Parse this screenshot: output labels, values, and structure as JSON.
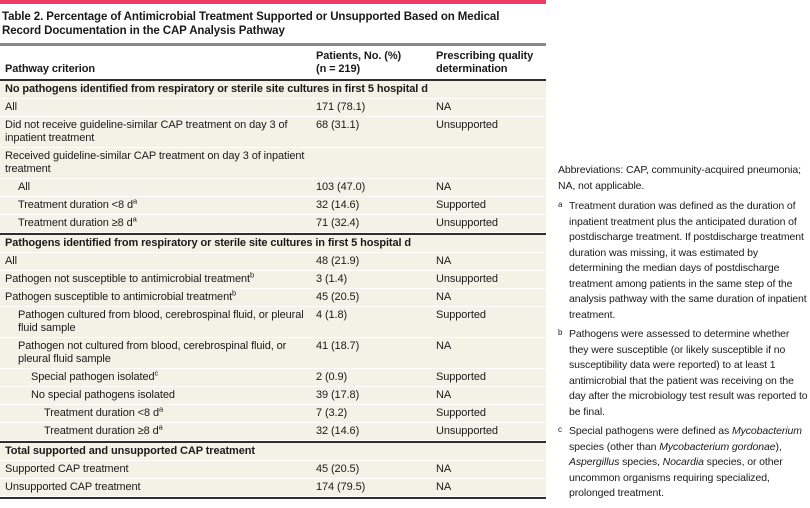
{
  "colors": {
    "accent": "#ee3b63",
    "cream": "#f4f2e6",
    "rule-dark": "#2f2f2f",
    "rule-gray": "#888888"
  },
  "title": "Table 2. Percentage of Antimicrobial Treatment Supported or Unsupported Based on Medical Record Documentation in the CAP Analysis Pathway",
  "table": {
    "header": {
      "col1": "Pathway criterion",
      "col2_line1": "Patients, No. (%)",
      "col2_line2": "(n = 219)",
      "col3": "Prescribing quality determination"
    },
    "rows": [
      {
        "type": "section",
        "label": "No pathogens identified from respiratory or sterile site cultures in first 5 hospital d"
      },
      {
        "type": "row",
        "indent": 0,
        "label": "All",
        "sup": "",
        "value": "171 (78.1)",
        "determination": "NA"
      },
      {
        "type": "row",
        "indent": 0,
        "label": "Did not receive guideline-similar CAP treatment on day 3 of inpatient treatment",
        "sup": "",
        "value": "68 (31.1)",
        "determination": "Unsupported"
      },
      {
        "type": "row",
        "indent": 0,
        "label": "Received guideline-similar CAP treatment on day 3 of inpatient treatment",
        "sup": "",
        "value": "",
        "determination": ""
      },
      {
        "type": "row",
        "indent": 1,
        "label": "All",
        "sup": "",
        "value": "103 (47.0)",
        "determination": "NA"
      },
      {
        "type": "row",
        "indent": 1,
        "label": "Treatment duration <8 d",
        "sup": "a",
        "value": "32 (14.6)",
        "determination": "Supported"
      },
      {
        "type": "row",
        "indent": 1,
        "label": "Treatment duration ≥8 d",
        "sup": "a",
        "value": "71 (32.4)",
        "determination": "Unsupported"
      },
      {
        "type": "section",
        "label": "Pathogens identified from respiratory or sterile site cultures in first 5 hospital d"
      },
      {
        "type": "row",
        "indent": 0,
        "label": "All",
        "sup": "",
        "value": "48 (21.9)",
        "determination": "NA"
      },
      {
        "type": "row",
        "indent": 0,
        "label": "Pathogen not susceptible to antimicrobial treatment",
        "sup": "b",
        "value": "3 (1.4)",
        "determination": "Unsupported"
      },
      {
        "type": "row",
        "indent": 0,
        "label": "Pathogen susceptible to antimicrobial treatment",
        "sup": "b",
        "value": "45 (20.5)",
        "determination": "NA"
      },
      {
        "type": "row",
        "indent": 1,
        "label": "Pathogen cultured from blood, cerebrospinal fluid, or pleural fluid sample",
        "sup": "",
        "value": "4 (1.8)",
        "determination": "Supported"
      },
      {
        "type": "row",
        "indent": 1,
        "label": "Pathogen not cultured from blood, cerebrospinal fluid, or pleural fluid sample",
        "sup": "",
        "value": "41 (18.7)",
        "determination": "NA"
      },
      {
        "type": "row",
        "indent": 2,
        "label": "Special pathogen isolated",
        "sup": "c",
        "value": "2 (0.9)",
        "determination": "Supported"
      },
      {
        "type": "row",
        "indent": 2,
        "label": "No special pathogens isolated",
        "sup": "",
        "value": "39 (17.8)",
        "determination": "NA"
      },
      {
        "type": "row",
        "indent": 3,
        "label": "Treatment duration <8 d",
        "sup": "a",
        "value": "7 (3.2)",
        "determination": "Supported"
      },
      {
        "type": "row",
        "indent": 3,
        "label": "Treatment duration ≥8 d",
        "sup": "a",
        "value": "32 (14.6)",
        "determination": "Unsupported"
      },
      {
        "type": "section",
        "label": "Total supported and unsupported CAP treatment"
      },
      {
        "type": "row",
        "indent": 0,
        "label": "Supported CAP treatment",
        "sup": "",
        "value": "45 (20.5)",
        "determination": "NA"
      },
      {
        "type": "row",
        "indent": 0,
        "label": "Unsupported CAP treatment",
        "sup": "",
        "value": "174 (79.5)",
        "determination": "NA"
      }
    ]
  },
  "notes": {
    "abbreviations": "Abbreviations: CAP, community-acquired pneumonia; NA, not applicable.",
    "items": [
      {
        "marker": "a",
        "segments": [
          {
            "text": "Treatment duration was defined as the duration of inpatient treatment plus the anticipated duration of postdischarge treatment. If postdischarge treatment duration was missing, it was estimated by determining the median days of postdischarge treatment among patients in the same step of the analysis pathway with the same duration of inpatient treatment.",
            "italic": false
          }
        ]
      },
      {
        "marker": "b",
        "segments": [
          {
            "text": "Pathogens were assessed to determine whether they were susceptible (or likely susceptible if no susceptibility data were reported) to at least 1 antimicrobial that the patient was receiving on the day after the microbiology test result was reported to be final.",
            "italic": false
          }
        ]
      },
      {
        "marker": "c",
        "segments": [
          {
            "text": "Special pathogens were defined as ",
            "italic": false
          },
          {
            "text": "Mycobacterium",
            "italic": true
          },
          {
            "text": " species (other than ",
            "italic": false
          },
          {
            "text": "Mycobacterium gordonae",
            "italic": true
          },
          {
            "text": "), ",
            "italic": false
          },
          {
            "text": "Aspergillus",
            "italic": true
          },
          {
            "text": " species, ",
            "italic": false
          },
          {
            "text": "Nocardia",
            "italic": true
          },
          {
            "text": " species, or other uncommon organisms requiring specialized, prolonged treatment.",
            "italic": false
          }
        ]
      }
    ]
  }
}
